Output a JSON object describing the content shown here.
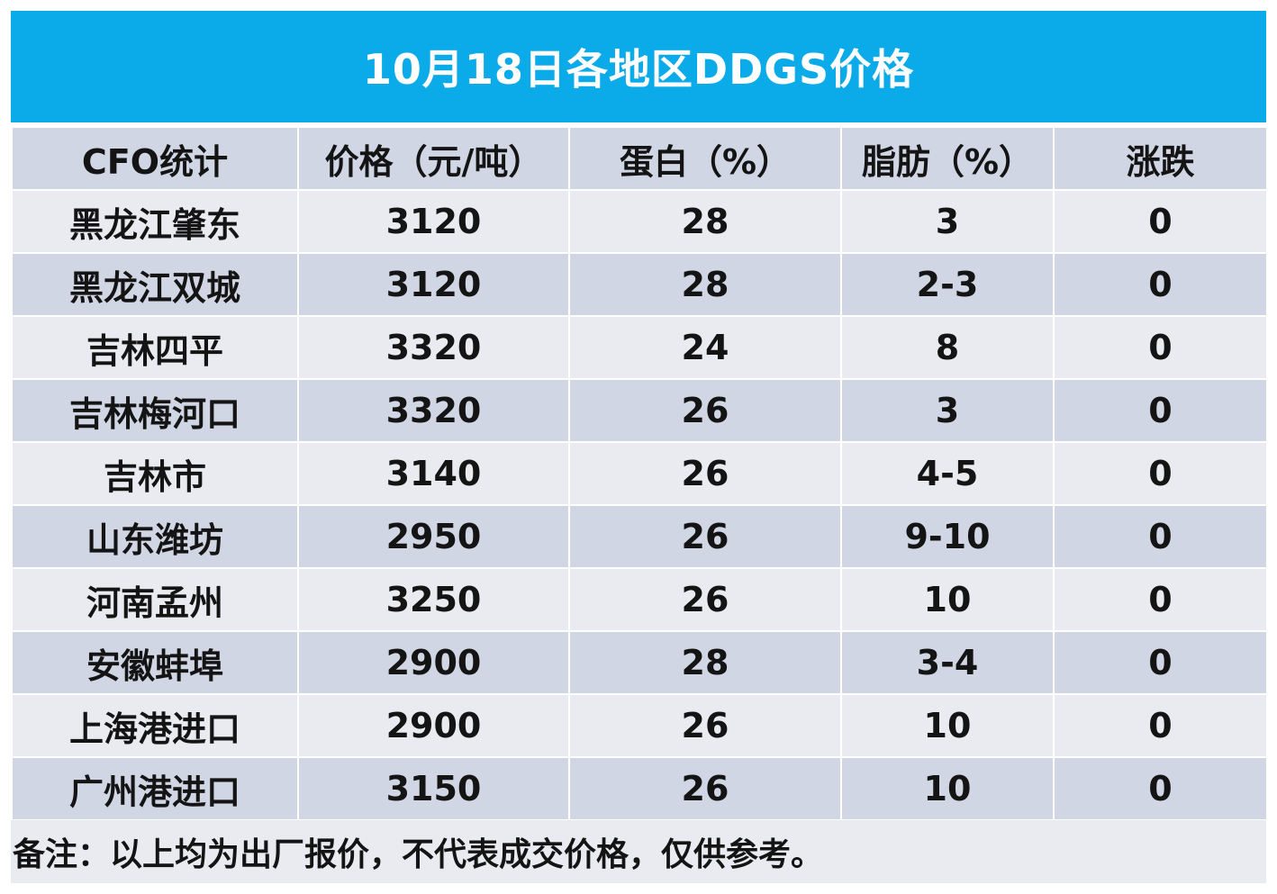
{
  "title": "10月18日各地区DDGS价格",
  "table": {
    "headers": [
      "CFO统计",
      "价格（元/吨）",
      "蛋白（%）",
      "脂肪（%）",
      "涨跌"
    ],
    "rows": [
      [
        "黑龙江肇东",
        "3120",
        "28",
        "3",
        "0"
      ],
      [
        "黑龙江双城",
        "3120",
        "28",
        "2-3",
        "0"
      ],
      [
        "吉林四平",
        "3320",
        "24",
        "8",
        "0"
      ],
      [
        "吉林梅河口",
        "3320",
        "26",
        "3",
        "0"
      ],
      [
        "吉林市",
        "3140",
        "26",
        "4-5",
        "0"
      ],
      [
        "山东潍坊",
        "2950",
        "26",
        "9-10",
        "0"
      ],
      [
        "河南孟州",
        "3250",
        "26",
        "10",
        "0"
      ],
      [
        "安徽蚌埠",
        "2900",
        "28",
        "3-4",
        "0"
      ],
      [
        "上海港进口",
        "2900",
        "26",
        "10",
        "0"
      ],
      [
        "广州港进口",
        "3150",
        "26",
        "10",
        "0"
      ]
    ]
  },
  "note": "备注：以上均为出厂报价，不代表成交价格，仅供参考。",
  "colors": {
    "title_bg": "#0babea",
    "title_text": "#ffffff",
    "row_dark": "#d0d6e4",
    "row_light": "#e9ebf1"
  }
}
